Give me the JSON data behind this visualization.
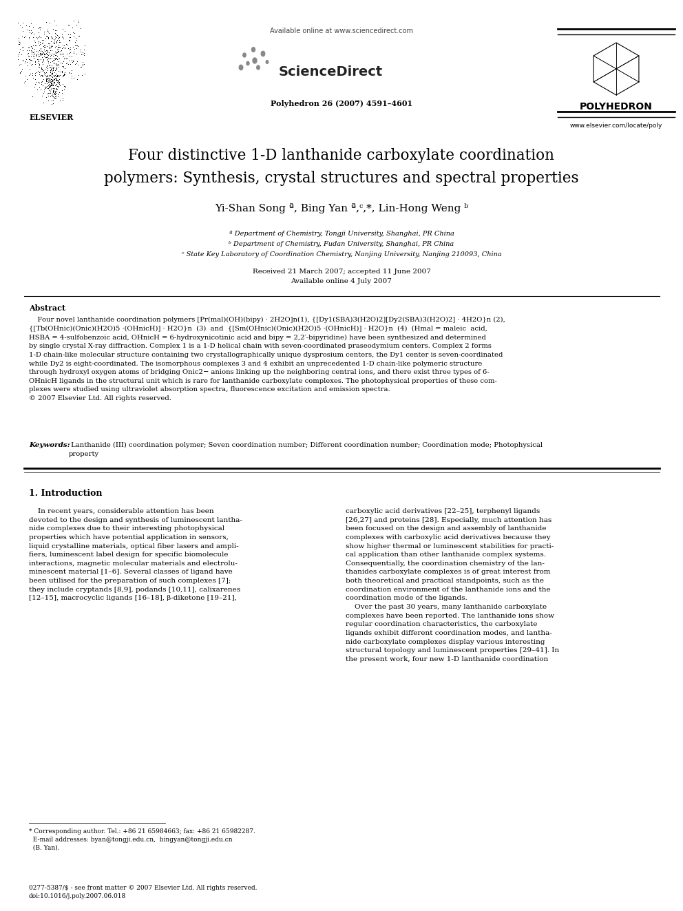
{
  "page_width": 9.92,
  "page_height": 13.23,
  "background_color": "#ffffff",
  "header": {
    "available_online_text": "Available online at www.sciencedirect.com",
    "sciencedirect_text": "ScienceDirect",
    "journal_text": "Polyhedron 26 (2007) 4591–4601",
    "polyhedron_text": "POLYHEDRON",
    "website_text": "www.elsevier.com/locate/poly",
    "elsevier_text": "ELSEVIER"
  },
  "title_line1": "Four distinctive 1-D lanthanide carboxylate coordination",
  "title_line2": "polymers: Synthesis, crystal structures and spectral properties",
  "authors": "Yi-Shan Song ª, Bing Yan ª,ᶜ,*, Lin-Hong Weng ᵇ",
  "affil_a": "ª Department of Chemistry, Tongji University, Shanghai, PR China",
  "affil_b": "ᵇ Department of Chemistry, Fudan University, Shanghai, PR China",
  "affil_c": "ᶜ State Key Laboratory of Coordination Chemistry, Nanjing University, Nanjing 210093, China",
  "received_text": "Received 21 March 2007; accepted 11 June 2007",
  "online_text": "Available online 4 July 2007",
  "abstract_label": "Abstract",
  "abstract_body": "    Four novel lanthanide coordination polymers [Pr(mal)(OH)(bipy) · 2H2O]n(1), {[Dy1(SBA)3(H2O)2][Dy2(SBA)3(H2O)2] · 4H2O}n (2),\n{[Tb(OHnic)(Onic)(H2O)5 ·(OHnicH)] · H2O}n  (3)  and  {[Sm(OHnic)(Onic)(H2O)5 ·(OHnicH)] · H2O}n  (4)  (Hmal = maleic  acid,\nHSBA = 4-sulfobenzoic acid, OHnicH = 6-hydroxynicotinic acid and bipy = 2,2′-bipyridine) have been synthesized and determined\nby single crystal X-ray diffraction. Complex 1 is a 1-D helical chain with seven-coordinated praseodymium centers. Complex 2 forms\n1-D chain-like molecular structure containing two crystallographically unique dysprosium centers, the Dy1 center is seven-coordinated\nwhile Dy2 is eight-coordinated. The isomorphous complexes 3 and 4 exhibit an unprecedented 1-D chain-like polymeric structure\nthrough hydroxyl oxygen atoms of bridging Onic2− anions linking up the neighboring central ions, and there exist three types of 6-\nOHnicH ligands in the structural unit which is rare for lanthanide carboxylate complexes. The photophysical properties of these com-\nplexes were studied using ultraviolet absorption spectra, fluorescence excitation and emission spectra.\n© 2007 Elsevier Ltd. All rights reserved.",
  "keywords_label": "Keywords:",
  "keywords_body": " Lanthanide (III) coordination polymer; Seven coordination number; Different coordination number; Coordination mode; Photophysical\nproperty",
  "section1_label": "1. Introduction",
  "intro_left": "    In recent years, considerable attention has been\ndevoted to the design and synthesis of luminescent lantha-\nnide complexes due to their interesting photophysical\nproperties which have potential application in sensors,\nliquid crystalline materials, optical fiber lasers and ampli-\nfiers, luminescent label design for specific biomolecule\ninteractions, magnetic molecular materials and electrolu-\nminescent material [1–6]. Several classes of ligand have\nbeen utilised for the preparation of such complexes [7];\nthey include cryptands [8,9], podands [10,11], calixarenes\n[12–15], macrocyclic ligands [16–18], β-diketone [19–21],",
  "intro_right": "carboxylic acid derivatives [22–25], terphenyl ligands\n[26,27] and proteins [28]. Especially, much attention has\nbeen focused on the design and assembly of lanthanide\ncomplexes with carboxylic acid derivatives because they\nshow higher thermal or luminescent stabilities for practi-\ncal application than other lanthanide complex systems.\nConsequentially, the coordination chemistry of the lan-\nthanides carboxylate complexes is of great interest from\nboth theoretical and practical standpoints, such as the\ncoordination environment of the lanthanide ions and the\ncoordination mode of the ligands.\n    Over the past 30 years, many lanthanide carboxylate\ncomplexes have been reported. The lanthanide ions show\nregular coordination characteristics, the carboxylate\nligands exhibit different coordination modes, and lantha-\nnide carboxylate complexes display various interesting\nstructural topology and luminescent properties [29–41]. In\nthe present work, four new 1-D lanthanide coordination",
  "footnote_star": "* Corresponding author. Tel.: +86 21 65984663; fax: +86 21 65982287.",
  "footnote_email": "  E-mail addresses: byan@tongji.edu.cn,  bingyan@tongji.edu.cn",
  "footnote_name": "  (B. Yan).",
  "footer1": "0277-5387/$ - see front matter © 2007 Elsevier Ltd. All rights reserved.",
  "footer2": "doi:10.1016/j.poly.2007.06.018"
}
